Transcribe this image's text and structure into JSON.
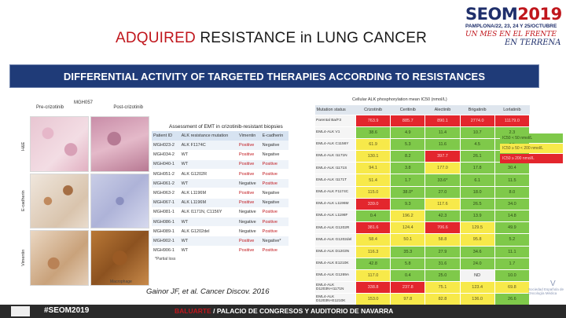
{
  "title": {
    "accent": "ADQUIRED",
    "rest": " RESISTANCE in LUNG CANCER"
  },
  "logo": {
    "main_a": "SEOM",
    "main_b": "2019",
    "dates": "PAMPLONA/22, 23, 24 Y 25/OCTUBRE",
    "hand1": "UN MES EN EL FRENTE",
    "hand2": "EN TERRENA"
  },
  "banner": "DIFFERENTIAL ACTIVITY OF TARGETED THERAPIES ACCORDING TO RESISTANCES",
  "panel_left": {
    "label_top": "MGH057",
    "col_left": "Pre-crizotinib",
    "col_right": "Post-crizotinib",
    "rows": [
      "H&E",
      "E-cadherin",
      "Vimentin"
    ],
    "scale_left": "",
    "scale_right": "Macrophage"
  },
  "emt_table": {
    "caption": "Assessment of EMT in crizotinib-resistant biopsies",
    "headers": [
      "Patient ID",
      "ALK resistance mutation",
      "Vimentin",
      "E-cadherin"
    ],
    "rows": [
      [
        "MGH023-2",
        "ALK F1174C",
        "Positive",
        "Negative"
      ],
      [
        "MGH034-2",
        "WT",
        "Positive",
        "Negative"
      ],
      [
        "MGH040-1",
        "WT",
        "Positive",
        "Positive"
      ],
      [
        "MGH051-2",
        "ALK G1202R",
        "Positive",
        "Positive"
      ],
      [
        "MGH061-2",
        "WT",
        "Negative",
        "Positive"
      ],
      [
        "MGH063-2",
        "ALK L1196M",
        "Positive",
        "Negative"
      ],
      [
        "MGH067-1",
        "ALK L1196M",
        "Positive",
        "Negative"
      ],
      [
        "MGH081-1",
        "ALK I1171N, C1156Y",
        "Negative",
        "Positive"
      ],
      [
        "MGH086-1",
        "WT",
        "Negative",
        "Positive"
      ],
      [
        "MGH089-1",
        "ALK G1202del",
        "Negative",
        "Positive"
      ],
      [
        "MGH902-1",
        "WT",
        "Positive",
        "Negative*"
      ],
      [
        "MGH906-1",
        "WT",
        "Positive",
        "Positive"
      ]
    ],
    "positive_cols": [
      2,
      3
    ],
    "footnote": "*Partial loss"
  },
  "citation": "Gainor JF, et al. Cancer Discov. 2016",
  "ic50_table": {
    "caption": "Cellular ALK phosphorylation mean IC50 (nmol/L)",
    "headers": [
      "Mutation status",
      "Crizotinib",
      "Ceritinib",
      "Alectinib",
      "Brigatinib",
      "Lorlatinib"
    ],
    "rows": [
      {
        "mut": "Parental Ba/F3",
        "vals": [
          "763.9",
          "885.7",
          "890.1",
          "2774.0",
          "11179.0"
        ],
        "cls": [
          "r",
          "r",
          "r",
          "r",
          "r"
        ]
      },
      {
        "mut": "EML4-ALK V1",
        "vals": [
          "38.6",
          "4.9",
          "11.4",
          "10.7",
          "2.3"
        ],
        "cls": [
          "g",
          "g",
          "g",
          "g",
          "g"
        ]
      },
      {
        "mut": "EML4-ALK C1156Y",
        "vals": [
          "61.9",
          "5.3",
          "11.6",
          "4.5",
          "4.6"
        ],
        "cls": [
          "y",
          "g",
          "g",
          "g",
          "g"
        ]
      },
      {
        "mut": "EML4-ALK I1171N",
        "vals": [
          "130.1",
          "8.2",
          "397.7",
          "26.1",
          "49.0"
        ],
        "cls": [
          "y",
          "g",
          "r",
          "g",
          "g"
        ]
      },
      {
        "mut": "EML4-ALK I1171S",
        "vals": [
          "94.1",
          "3.8",
          "177.0",
          "17.8",
          "30.4"
        ],
        "cls": [
          "y",
          "g",
          "y",
          "g",
          "g"
        ]
      },
      {
        "mut": "EML4-ALK I1171T",
        "vals": [
          "51.4",
          "1.7",
          "33.6*",
          "6.1",
          "11.5"
        ],
        "cls": [
          "y",
          "g",
          "g",
          "g",
          "g"
        ]
      },
      {
        "mut": "EML4-ALK F1174C",
        "vals": [
          "115.0",
          "38.0*",
          "27.0",
          "18.0",
          "8.0"
        ],
        "cls": [
          "y",
          "g",
          "g",
          "g",
          "g"
        ]
      },
      {
        "mut": "EML4-ALK L1196M",
        "vals": [
          "339.0",
          "9.3",
          "117.6",
          "26.5",
          "34.0"
        ],
        "cls": [
          "r",
          "g",
          "y",
          "g",
          "g"
        ]
      },
      {
        "mut": "EML4-ALK L1198F",
        "vals": [
          "0.4",
          "196.2",
          "42.3",
          "13.9",
          "14.8"
        ],
        "cls": [
          "g",
          "y",
          "g",
          "g",
          "g"
        ]
      },
      {
        "mut": "EML4-ALK G1202R",
        "vals": [
          "381.6",
          "124.4",
          "706.6",
          "129.5",
          "49.9"
        ],
        "cls": [
          "r",
          "y",
          "r",
          "y",
          "g"
        ]
      },
      {
        "mut": "EML4-ALK G1202del",
        "vals": [
          "58.4",
          "50.1",
          "58.8",
          "95.8",
          "5.2"
        ],
        "cls": [
          "y",
          "y",
          "y",
          "y",
          "g"
        ]
      },
      {
        "mut": "EML4-ALK D1203N",
        "vals": [
          "116.3",
          "35.3",
          "27.9",
          "34.6",
          "11.1"
        ],
        "cls": [
          "y",
          "g",
          "g",
          "g",
          "g"
        ]
      },
      {
        "mut": "EML4-ALK E1210K",
        "vals": [
          "42.8",
          "5.8",
          "31.6",
          "24.0",
          "1.7"
        ],
        "cls": [
          "g",
          "g",
          "g",
          "g",
          "g"
        ]
      },
      {
        "mut": "EML4-ALK G1269A",
        "vals": [
          "117.0",
          "0.4",
          "25.0",
          "ND",
          "10.0"
        ],
        "cls": [
          "y",
          "g",
          "g",
          "w",
          "g"
        ]
      },
      {
        "mut": "EML4-ALK D1203N+I1171N",
        "vals": [
          "338.8",
          "237.8",
          "75.1",
          "123.4",
          "69.8"
        ],
        "cls": [
          "r",
          "r",
          "y",
          "y",
          "y"
        ]
      },
      {
        "mut": "EML4-ALK D1203N+E1210K",
        "vals": [
          "153.0",
          "97.8",
          "82.8",
          "136.0",
          "26.6"
        ],
        "cls": [
          "y",
          "y",
          "y",
          "y",
          "g"
        ]
      }
    ]
  },
  "legend": [
    {
      "label": "IC50 < 50 nmol/L",
      "cls": "g"
    },
    {
      "label": "IC50 ≥ 50 < 200 nmol/L",
      "cls": "y"
    },
    {
      "label": "IC50 ≥ 200 nmol/L",
      "cls": "r"
    }
  ],
  "footer": {
    "hashtag": "#SEOM2019",
    "venue_a": "BALUARTE",
    "venue_b": " / PALACIO DE CONGRESOS Y AUDITORIO DE NAVARRA",
    "society": "Sociedad Española de Oncología Médica"
  }
}
